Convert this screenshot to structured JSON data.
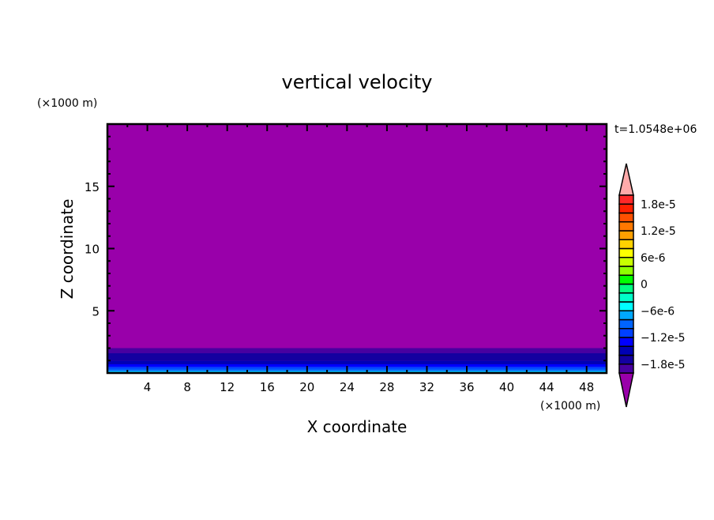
{
  "chart_data": {
    "type": "heatmap",
    "title": "vertical velocity",
    "xlabel": "X coordinate",
    "ylabel": "Z coordinate",
    "x_unit": "(×1000 m)",
    "y_unit": "(×1000 m)",
    "time_label": "t=1.0548e+06",
    "xlim": [
      0,
      50
    ],
    "ylim": [
      0,
      20
    ],
    "x_ticks": [
      4,
      8,
      12,
      16,
      20,
      24,
      28,
      32,
      36,
      40,
      44,
      48
    ],
    "y_ticks": [
      5,
      10,
      15
    ],
    "background_color": "#9900aa",
    "bands": [
      {
        "z": [
          1.6,
          2.0
        ],
        "color": "#4800a0"
      },
      {
        "z": [
          1.0,
          1.6
        ],
        "color": "#1400a0"
      },
      {
        "z": [
          0.7,
          1.0
        ],
        "color": "#0000b4"
      },
      {
        "z": [
          0.5,
          0.7
        ],
        "color": "#0000ff"
      },
      {
        "z": [
          0.35,
          0.5
        ],
        "color": "#0040ff"
      },
      {
        "z": [
          0.2,
          0.35
        ],
        "color": "#0064ff"
      },
      {
        "z": [
          0.1,
          0.2
        ],
        "color": "#00a8ff"
      },
      {
        "z": [
          0.0,
          0.1
        ],
        "color": "#00ffff"
      }
    ],
    "colorbar": {
      "levels_min": -2e-05,
      "levels_max": 2e-05,
      "colors_bottom_to_top": [
        "#4800a0",
        "#1400a0",
        "#0000b4",
        "#0000ff",
        "#0040ff",
        "#0064ff",
        "#00a8ff",
        "#00ffff",
        "#00ffc8",
        "#00ff80",
        "#00ff00",
        "#8cff00",
        "#c8ff00",
        "#ffff00",
        "#ffd200",
        "#ffa000",
        "#ff7800",
        "#ff5000",
        "#ff2000",
        "#ff2828"
      ],
      "over_color": "#ffaaaa",
      "under_color": "#9900aa",
      "tick_values": [
        1.8e-05,
        1.2e-05,
        6e-06,
        0,
        -6e-06,
        -1.2e-05,
        -1.8e-05
      ],
      "tick_labels": [
        "1.8e-5",
        "1.2e-5",
        "6e-6",
        "0",
        "−6e-6",
        "−1.2e-5",
        "−1.8e-5"
      ]
    }
  }
}
